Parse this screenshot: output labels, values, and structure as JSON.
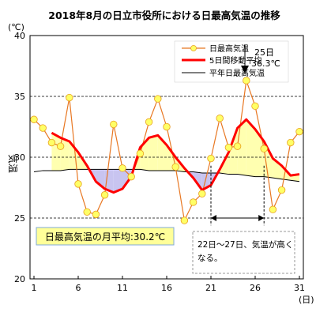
{
  "chart_data": {
    "type": "line",
    "title": "2018年8月の日立市役所における日最高気温の推移",
    "y_unit_label": "(℃)",
    "ylabel": "気温",
    "x_unit_label": "(日)",
    "ylim": [
      20,
      40
    ],
    "xlim": [
      1,
      31
    ],
    "y_ticks": [
      20,
      25,
      30,
      35,
      40
    ],
    "x_ticks": [
      1,
      6,
      11,
      16,
      21,
      26,
      31
    ],
    "days": [
      1,
      2,
      3,
      4,
      5,
      6,
      7,
      8,
      9,
      10,
      11,
      12,
      13,
      14,
      15,
      16,
      17,
      18,
      19,
      20,
      21,
      22,
      23,
      24,
      25,
      26,
      27,
      28,
      29,
      30,
      31
    ],
    "series": [
      {
        "name": "日最高気温",
        "color": "#e87722",
        "marker_color": "#ffff66",
        "values": [
          33.1,
          32.4,
          31.2,
          30.9,
          34.9,
          27.8,
          25.5,
          25.3,
          26.9,
          32.7,
          29.1,
          28.4,
          30.3,
          32.9,
          34.8,
          32.5,
          29.2,
          24.8,
          26.3,
          27.0,
          29.9,
          33.2,
          30.8,
          30.9,
          36.3,
          34.2,
          30.7,
          25.7,
          27.3,
          31.2,
          32.1
        ]
      },
      {
        "name": "5日間移動平均",
        "color": "#ff0000",
        "values": [
          null,
          null,
          32.0,
          31.6,
          31.3,
          30.4,
          29.3,
          28.0,
          27.4,
          27.1,
          27.4,
          28.4,
          30.8,
          31.6,
          31.8,
          31.0,
          30.0,
          29.1,
          28.3,
          27.3,
          27.7,
          29.0,
          30.4,
          32.4,
          33.1,
          32.3,
          31.3,
          29.9,
          29.3,
          28.5,
          28.6
        ]
      },
      {
        "name": "平年日最高気温",
        "color": "#000000",
        "values": [
          28.8,
          28.9,
          28.9,
          28.9,
          29.0,
          29.0,
          29.0,
          29.0,
          29.0,
          29.0,
          29.0,
          29.0,
          29.0,
          28.9,
          28.9,
          28.9,
          28.9,
          28.8,
          28.8,
          28.7,
          28.7,
          28.7,
          28.6,
          28.6,
          28.5,
          28.4,
          28.4,
          28.3,
          28.2,
          28.1,
          28.0
        ]
      }
    ],
    "fill_above_color": "#ffffb0",
    "fill_below_color": "#c8c4f0",
    "annotations": {
      "peak_day": "25日",
      "peak_temp": "36.3℃",
      "monthly_avg": "日最高気温の月平均:30.2℃",
      "period_note_line1": "22日～27日、気温が高く",
      "period_note_line2": "なる。",
      "period_start": 21,
      "period_end": 27
    },
    "legend_position": "top-right",
    "grid": "dashed-horizontal"
  }
}
